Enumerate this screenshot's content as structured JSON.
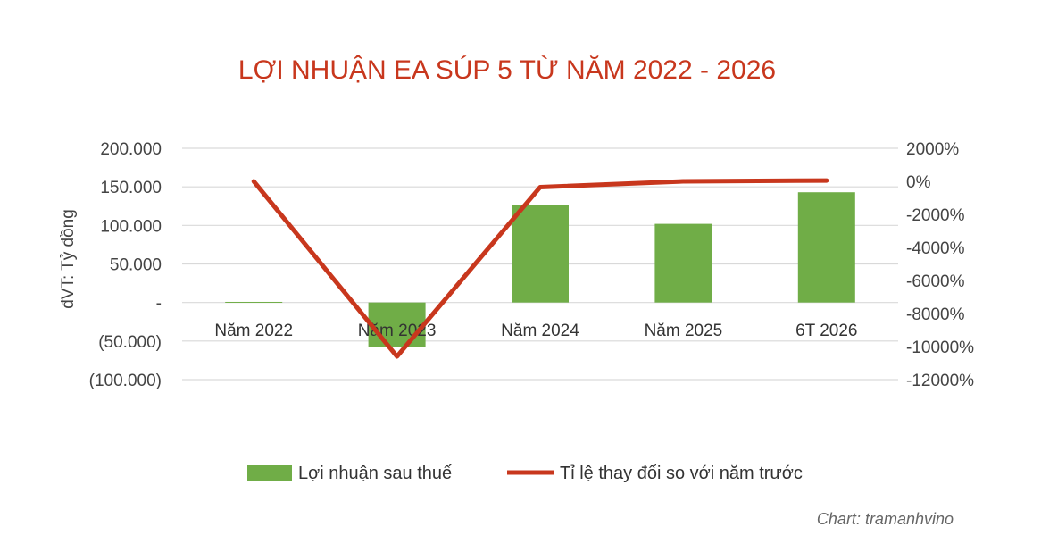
{
  "chart_data": {
    "type": "bar+line",
    "title": "LỢI NHUẬN EA SÚP 5 TỪ NĂM 2022 - 2026",
    "ylabel": "đVT: Tỷ đồng",
    "categories": [
      "Năm 2022",
      "Năm 2023",
      "Năm 2024",
      "Năm 2025",
      "6T 2026"
    ],
    "series": [
      {
        "name": "Lợi nhuận sau thuế",
        "type": "bar",
        "axis": "left",
        "values": [
          800,
          -58000,
          126000,
          102000,
          143000
        ]
      },
      {
        "name": "Tỉ lệ thay đổi so với năm trước",
        "type": "line",
        "axis": "right",
        "values": [
          0,
          -10600,
          -350,
          0,
          50
        ]
      }
    ],
    "y_left": {
      "min": -100000,
      "max": 200000,
      "ticks": [
        200000,
        150000,
        100000,
        50000,
        0,
        -50000,
        -100000
      ],
      "tick_labels": [
        "200.000",
        "150.000",
        "100.000",
        "50.000",
        "-",
        "(50.000)",
        "(100.000)"
      ]
    },
    "y_right": {
      "min": -12000,
      "max": 2000,
      "ticks": [
        2000,
        0,
        -2000,
        -4000,
        -6000,
        -8000,
        -10000,
        -12000
      ],
      "tick_labels": [
        "2000%",
        "0%",
        "-2000%",
        "-4000%",
        "-6000%",
        "-8000%",
        "-10000%",
        "-12000%"
      ]
    },
    "grid": true,
    "legend_position": "bottom",
    "colors": {
      "bar": "#70ad47",
      "line": "#c8371d",
      "title": "#c8371d",
      "grid": "#d9d9d9"
    },
    "credit": "Chart: tramanhvino"
  }
}
